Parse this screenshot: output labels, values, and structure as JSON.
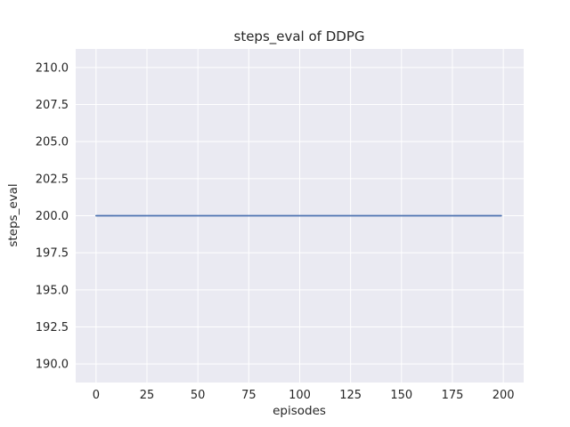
{
  "chart_data": {
    "type": "line",
    "title": "steps_eval of DDPG",
    "xlabel": "episodes",
    "ylabel": "steps_eval",
    "series": [
      {
        "name": "steps_eval",
        "color": "#4c72b0",
        "x": [
          0,
          199
        ],
        "y": [
          200,
          200
        ]
      }
    ],
    "xlim": [
      -10,
      210
    ],
    "ylim": [
      188.75,
      211.25
    ],
    "x_ticks": [
      0,
      25,
      50,
      75,
      100,
      125,
      150,
      175,
      200
    ],
    "y_ticks": [
      190.0,
      192.5,
      195.0,
      197.5,
      200.0,
      202.5,
      205.0,
      207.5,
      210.0
    ],
    "grid": true,
    "legend": "none",
    "style": {
      "figure_background": "#ffffff",
      "axes_background": "#eaeaf2",
      "grid_color": "#ffffff",
      "text_color": "#262626",
      "line_width": 1.8
    }
  }
}
